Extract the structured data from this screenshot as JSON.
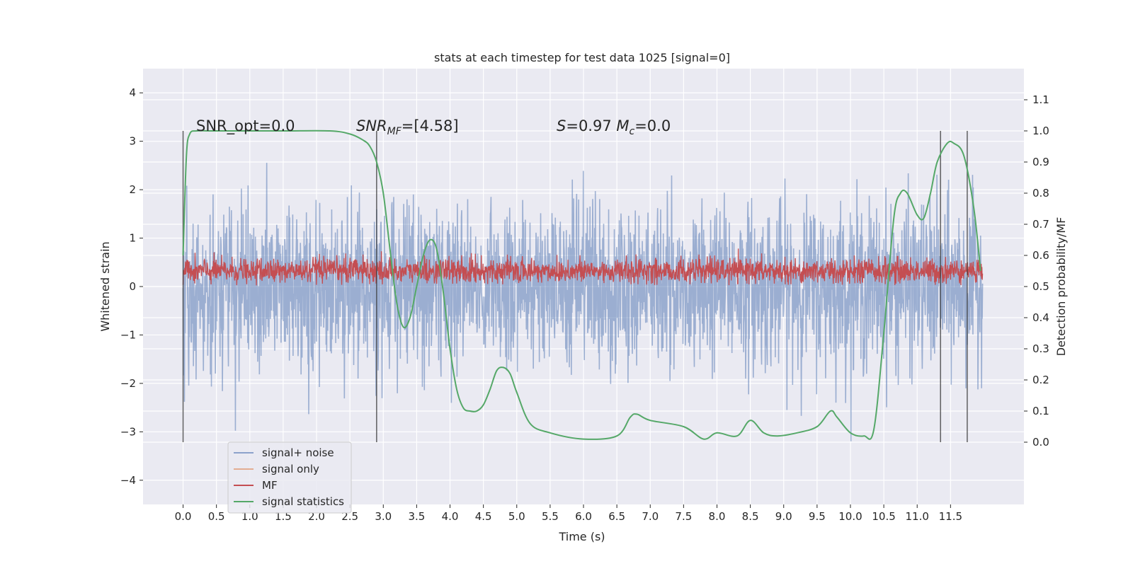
{
  "chart_data": {
    "type": "line",
    "title": "stats at each timestep for test data 1025 [signal=0]",
    "xlabel": "Time (s)",
    "ylabel_left": "Whitened strain",
    "ylabel_right": "Detection probability/MF",
    "xlim": [
      -0.6,
      12.6
    ],
    "ylim_left": [
      -4.5,
      4.5
    ],
    "ylim_right": [
      -0.2,
      1.2
    ],
    "x_ticks": [
      "0.0",
      "0.5",
      "1.0",
      "1.5",
      "2.0",
      "2.5",
      "3.0",
      "3.5",
      "4.0",
      "4.5",
      "5.0",
      "5.5",
      "6.0",
      "6.5",
      "7.0",
      "7.5",
      "8.0",
      "8.5",
      "9.0",
      "9.5",
      "10.0",
      "10.5",
      "11.0",
      "11.5"
    ],
    "y_ticks_left": [
      "−4",
      "−3",
      "−2",
      "−1",
      "0",
      "1",
      "2",
      "3",
      "4"
    ],
    "y_ticks_right": [
      "0.0",
      "0.1",
      "0.2",
      "0.3",
      "0.4",
      "0.5",
      "0.6",
      "0.7",
      "0.8",
      "0.9",
      "1.0",
      "1.1"
    ],
    "grid": true,
    "legend_position": "lower-left",
    "series": [
      {
        "name": "signal+ noise",
        "color": "#4c72b0",
        "axis": "left",
        "style": "dense noise, amplitude ~ ±2 with peaks to ±4"
      },
      {
        "name": "signal only",
        "color": "#dd8452",
        "axis": "left"
      },
      {
        "name": "MF",
        "color": "#c44e52",
        "axis": "left",
        "style": "dense noise band between 0 and ~0.8"
      },
      {
        "name": "signal statistics",
        "color": "#55a868",
        "axis": "right",
        "x": [
          0.0,
          0.05,
          0.1,
          0.2,
          0.4,
          0.8,
          1.5,
          2.2,
          2.5,
          2.7,
          2.8,
          2.9,
          3.0,
          3.1,
          3.2,
          3.3,
          3.4,
          3.5,
          3.6,
          3.7,
          3.8,
          3.9,
          4.0,
          4.1,
          4.2,
          4.3,
          4.4,
          4.5,
          4.6,
          4.7,
          4.8,
          4.9,
          5.0,
          5.2,
          5.5,
          6.0,
          6.5,
          6.7,
          6.8,
          7.0,
          7.5,
          7.8,
          8.0,
          8.3,
          8.5,
          8.7,
          8.9,
          9.2,
          9.5,
          9.7,
          9.8,
          10.0,
          10.2,
          10.35,
          10.5,
          10.65,
          10.75,
          10.85,
          11.0,
          11.1,
          11.2,
          11.3,
          11.45,
          11.55,
          11.7,
          11.85,
          11.95
        ],
        "y": [
          0.6,
          0.92,
          0.99,
          1.0,
          1.0,
          1.0,
          1.0,
          1.0,
          0.99,
          0.97,
          0.95,
          0.9,
          0.8,
          0.62,
          0.45,
          0.37,
          0.4,
          0.5,
          0.6,
          0.65,
          0.62,
          0.48,
          0.3,
          0.17,
          0.11,
          0.1,
          0.1,
          0.12,
          0.17,
          0.23,
          0.24,
          0.22,
          0.16,
          0.06,
          0.03,
          0.01,
          0.02,
          0.08,
          0.09,
          0.07,
          0.05,
          0.01,
          0.03,
          0.02,
          0.07,
          0.03,
          0.02,
          0.03,
          0.05,
          0.1,
          0.08,
          0.03,
          0.02,
          0.04,
          0.35,
          0.72,
          0.8,
          0.8,
          0.73,
          0.72,
          0.8,
          0.9,
          0.96,
          0.96,
          0.92,
          0.75,
          0.55
        ]
      }
    ],
    "vertical_lines_x": [
      0.0,
      2.9,
      11.35,
      11.75
    ],
    "annotations": [
      {
        "label": "SNR_opt=0.0"
      },
      {
        "label": "SNR_MF=[4.58]"
      },
      {
        "label": "S=0.97   M_c=0.0"
      }
    ]
  }
}
